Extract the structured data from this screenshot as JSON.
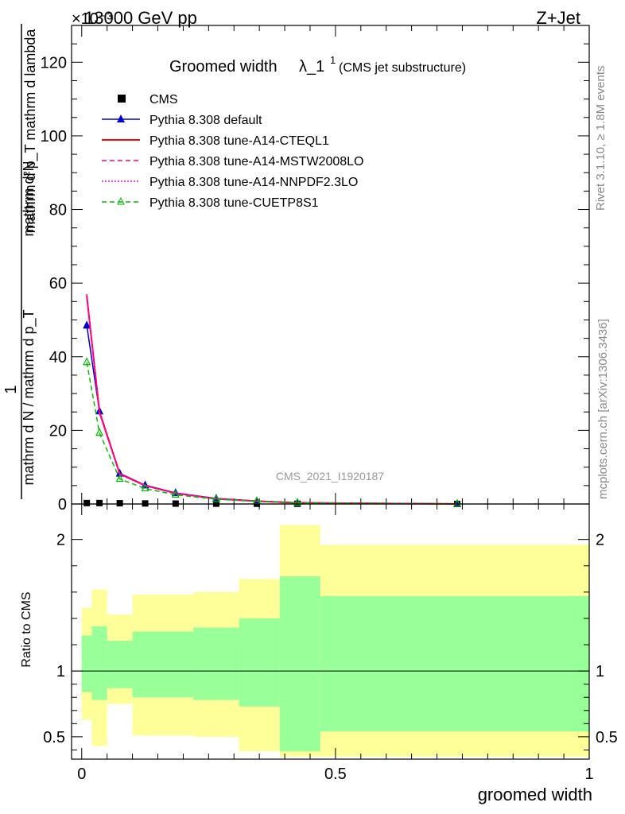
{
  "header": {
    "left": "13000 GeV pp",
    "right": "Z+Jet",
    "exponent": "×10⁻³"
  },
  "side": {
    "rivet": "Rivet 3.1.10, ≥ 1.8M events",
    "mcplots": "mcplots.cern.ch [arXiv:1306.3436]"
  },
  "watermark": "CMS_2021_I1920187",
  "ylabel_top": {
    "numerator_a": "1",
    "denominator_a": "mathrm d N / mathrm d p_T",
    "numerator_b": "mathrm d²N",
    "denominator_b": "mathrm d p_T mathrm d lambda"
  },
  "colors": {
    "cms": "#000000",
    "default": "#0000cc",
    "cteql1": "#ff0000",
    "mstw": "#ff0080",
    "nnpdf": "#ff00ff",
    "cuetp8s1": "#00bb00",
    "band_outer": "#ffff99",
    "band_inner": "#99ff99"
  },
  "chart_data": [
    {
      "type": "line",
      "title": "Groomed width λ_1¹ (CMS jet substructure)",
      "title_main": "Groomed width",
      "title_lambda": "λ_1",
      "title_sup": "1",
      "title_small": "(CMS jet substructure)",
      "xlabel": "groomed width",
      "ylabel": "",
      "ylim": [
        0,
        130
      ],
      "xlim": [
        -0.02,
        1.0
      ],
      "yticks": [
        0,
        20,
        40,
        60,
        80,
        100,
        120
      ],
      "legend_position": "top-left",
      "x": [
        0.01,
        0.035,
        0.075,
        0.125,
        0.185,
        0.265,
        0.345,
        0.425,
        0.74
      ],
      "series": [
        {
          "name": "CMS",
          "key": "cms",
          "style": "marker-square",
          "values": [
            0.25,
            0.25,
            0.2,
            0.15,
            0.1,
            0.08,
            0.06,
            0.05,
            0.02
          ]
        },
        {
          "name": "Pythia 8.308 default",
          "key": "default",
          "style": "solid-triangle",
          "values": [
            48.5,
            25.2,
            8.3,
            5.1,
            3.0,
            1.5,
            0.8,
            0.35,
            0.02
          ]
        },
        {
          "name": "Pythia 8.308 tune-A14-CTEQL1",
          "key": "cteql1",
          "style": "solid",
          "values": [
            56.5,
            25.0,
            8.2,
            5.0,
            2.9,
            1.4,
            0.75,
            0.3,
            0.02
          ]
        },
        {
          "name": "Pythia 8.308 tune-A14-MSTW2008LO",
          "key": "mstw",
          "style": "dashed",
          "values": [
            57.0,
            24.8,
            8.1,
            5.0,
            2.9,
            1.4,
            0.75,
            0.3,
            0.02
          ]
        },
        {
          "name": "Pythia 8.308 tune-A14-NNPDF2.3LO",
          "key": "nnpdf",
          "style": "dotted",
          "values": [
            56.0,
            24.6,
            8.0,
            4.9,
            2.9,
            1.4,
            0.75,
            0.3,
            0.02
          ]
        },
        {
          "name": "Pythia 8.308 tune-CUETP8S1",
          "key": "cuetp8s1",
          "style": "dashed-open-triangle",
          "values": [
            38.5,
            19.3,
            6.8,
            4.2,
            2.5,
            1.3,
            0.7,
            0.3,
            0.02
          ]
        }
      ]
    },
    {
      "type": "area",
      "ylabel": "Ratio to CMS",
      "xlabel": "groomed width",
      "xlim": [
        -0.02,
        1.0
      ],
      "ylim": [
        0.33,
        2.27
      ],
      "yticks": [
        0.5,
        1,
        2
      ],
      "xticks": [
        0,
        0.5,
        1
      ],
      "reference_line": 1,
      "bins": [
        {
          "x0": 0.0,
          "x1": 0.02,
          "inner": [
            0.84,
            1.27
          ],
          "outer": [
            0.63,
            1.48
          ]
        },
        {
          "x0": 0.02,
          "x1": 0.05,
          "inner": [
            0.78,
            1.34
          ],
          "outer": [
            0.43,
            1.62
          ]
        },
        {
          "x0": 0.05,
          "x1": 0.1,
          "inner": [
            0.87,
            1.23
          ],
          "outer": [
            0.75,
            1.43
          ]
        },
        {
          "x0": 0.1,
          "x1": 0.15,
          "inner": [
            0.8,
            1.3
          ],
          "outer": [
            0.51,
            1.58
          ]
        },
        {
          "x0": 0.15,
          "x1": 0.22,
          "inner": [
            0.8,
            1.3
          ],
          "outer": [
            0.51,
            1.58
          ]
        },
        {
          "x0": 0.22,
          "x1": 0.31,
          "inner": [
            0.78,
            1.33
          ],
          "outer": [
            0.5,
            1.6
          ]
        },
        {
          "x0": 0.31,
          "x1": 0.39,
          "inner": [
            0.73,
            1.4
          ],
          "outer": [
            0.39,
            1.7
          ]
        },
        {
          "x0": 0.39,
          "x1": 0.47,
          "inner": [
            0.39,
            1.72
          ],
          "outer": [
            0.35,
            2.11
          ]
        },
        {
          "x0": 0.47,
          "x1": 1.0,
          "inner": [
            0.54,
            1.57
          ],
          "outer": [
            0.35,
            1.96
          ]
        }
      ]
    }
  ]
}
